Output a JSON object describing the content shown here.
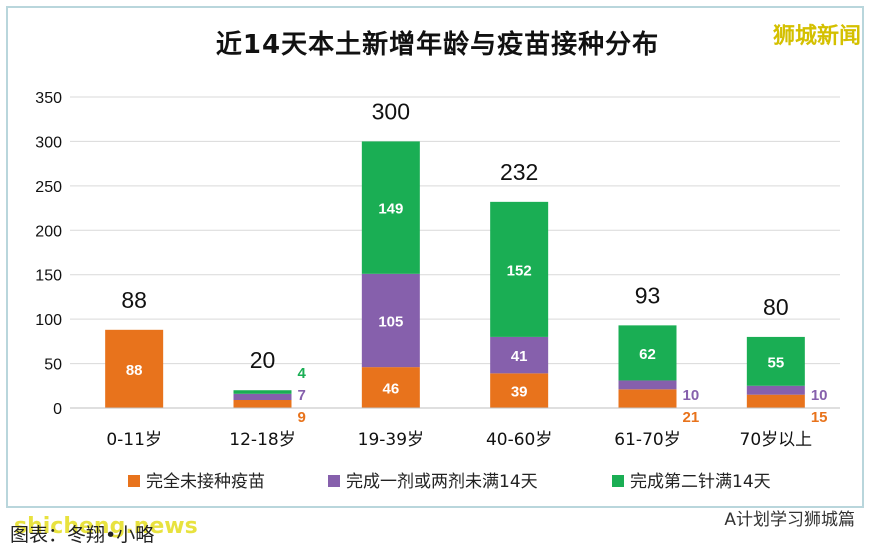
{
  "title": "近14天本土新增年龄与疫苗接种分布",
  "brand": "狮城新闻",
  "footer_left": "图表：冬翔•小略",
  "watermark": "shicheng.news",
  "footer_right": "A计划学习狮城篇",
  "colors": {
    "unvaccinated": "#E8731C",
    "partial": "#8660AC",
    "full": "#1AAE54",
    "grid": "#d9d9d9"
  },
  "chart_data": {
    "type": "bar",
    "stacked": true,
    "ylim": [
      0,
      350
    ],
    "yticks": [
      0,
      50,
      100,
      150,
      200,
      250,
      300,
      350
    ],
    "grid": true,
    "legend_position": "bottom",
    "categories": [
      "0-11岁",
      "12-18岁",
      "19-39岁",
      "40-60岁",
      "61-70岁",
      "70岁以上"
    ],
    "totals": [
      88,
      20,
      300,
      232,
      93,
      80
    ],
    "series": [
      {
        "name": "完全未接种疫苗",
        "color": "#E8731C",
        "values": [
          88,
          9,
          46,
          39,
          21,
          15
        ]
      },
      {
        "name": "完成一剂或两剂未满14天",
        "color": "#8660AC",
        "values": [
          0,
          7,
          105,
          41,
          10,
          10
        ]
      },
      {
        "name": "完成第二针满14天",
        "color": "#1AAE54",
        "values": [
          0,
          4,
          149,
          152,
          62,
          55
        ]
      }
    ]
  }
}
